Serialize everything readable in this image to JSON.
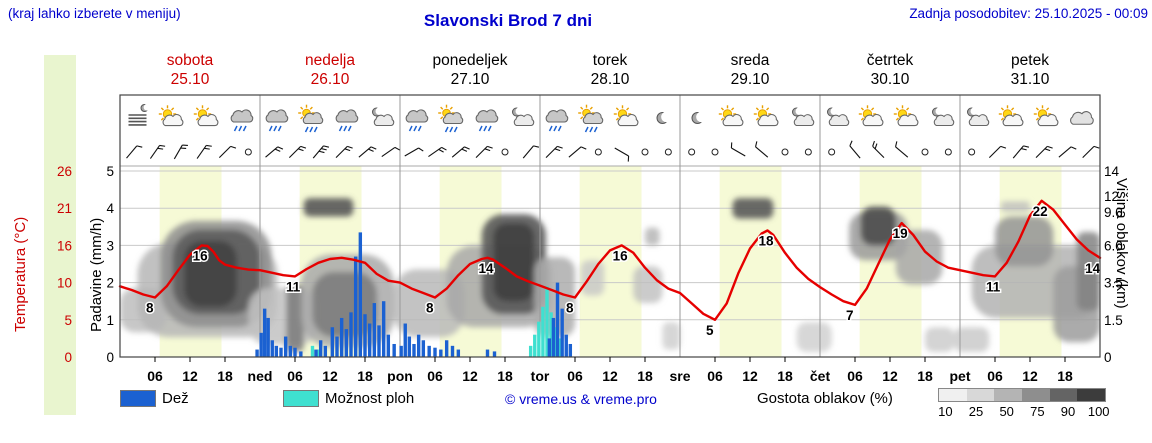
{
  "header": {
    "hint": "(kraj lahko izberete v meniju)",
    "title": "Slavonski Brod 7 dni",
    "updated": "Zadnja posodobitev: 25.10.2025 - 00:09"
  },
  "axes": {
    "temp_label": "Temperatura (°C)",
    "temp_ticks": [
      "26",
      "21",
      "16",
      "10",
      "5",
      "0"
    ],
    "precip_label": "Padavine (mm/h)",
    "precip_ticks": [
      "5",
      "4",
      "3",
      "2",
      "1",
      "0"
    ],
    "cloud_label": "Višina oblakov (km)",
    "cloud_ticks": [
      "14",
      "12",
      "9.0",
      "6.0",
      "3.5",
      "1.5",
      "0"
    ]
  },
  "days": [
    {
      "name": "sobota",
      "date": "25.10",
      "weekend": true
    },
    {
      "name": "nedelja",
      "date": "26.10",
      "weekend": true
    },
    {
      "name": "ponedeljek",
      "date": "27.10",
      "weekend": false
    },
    {
      "name": "torek",
      "date": "28.10",
      "weekend": false
    },
    {
      "name": "sreda",
      "date": "29.10",
      "weekend": false
    },
    {
      "name": "četrtek",
      "date": "30.10",
      "weekend": false
    },
    {
      "name": "petek",
      "date": "31.10",
      "weekend": false
    }
  ],
  "x_axis": {
    "hour_labels": [
      "06",
      "12",
      "18"
    ],
    "day_abbrevs": [
      "ned",
      "pon",
      "tor",
      "sre",
      "čet",
      "pet"
    ]
  },
  "legend": {
    "rain": "Dež",
    "showers": "Možnost ploh",
    "copyright": "© vreme.us & vreme.pro",
    "cloud_density": "Gostota oblakov (%)",
    "cloud_scale": [
      "10",
      "25",
      "50",
      "75",
      "90",
      "100"
    ],
    "cloud_scale_colors": [
      "#f0f0f0",
      "#d8d8d8",
      "#b4b4b4",
      "#8e8e8e",
      "#646464",
      "#3c3c3c"
    ]
  },
  "chart_data": {
    "type": "meteogram",
    "x_hours_range": [
      0,
      168
    ],
    "hours_per_day": 24,
    "daylight_hours": [
      6.8,
      17.4
    ],
    "temp_axis_anchor_values": [
      0,
      5,
      10,
      16,
      21,
      26
    ],
    "temp_tick_values": [
      26,
      21,
      16,
      10,
      5,
      0
    ],
    "precip_axis": [
      0,
      5
    ],
    "precip_tick_values": [
      5,
      4,
      3,
      2,
      1,
      0
    ],
    "cloud_km_anchors": [
      0,
      1.5,
      3.5,
      6,
      9,
      12,
      14
    ],
    "cloud_tick_values": [
      14,
      12,
      9,
      6,
      3.5,
      1.5,
      0
    ],
    "temperature_c": [
      [
        0,
        9.5
      ],
      [
        2,
        9
      ],
      [
        4,
        8.4
      ],
      [
        6,
        8
      ],
      [
        8,
        9.5
      ],
      [
        10,
        12
      ],
      [
        12,
        14.5
      ],
      [
        14,
        16
      ],
      [
        15,
        15.9
      ],
      [
        16,
        15
      ],
      [
        17,
        13.6
      ],
      [
        18,
        12.9
      ],
      [
        20,
        12.4
      ],
      [
        22,
        12.1
      ],
      [
        24,
        12
      ],
      [
        26,
        11.6
      ],
      [
        28,
        11.2
      ],
      [
        30,
        11
      ],
      [
        32,
        12.2
      ],
      [
        34,
        13.2
      ],
      [
        36,
        13.8
      ],
      [
        38,
        14
      ],
      [
        40,
        13.7
      ],
      [
        42,
        13.2
      ],
      [
        44,
        11.4
      ],
      [
        46,
        10.3
      ],
      [
        48,
        10
      ],
      [
        50,
        9.2
      ],
      [
        52,
        8.6
      ],
      [
        54,
        8
      ],
      [
        56,
        9.2
      ],
      [
        58,
        11.2
      ],
      [
        60,
        13
      ],
      [
        62,
        13.8
      ],
      [
        63,
        14
      ],
      [
        64,
        13.7
      ],
      [
        66,
        12.4
      ],
      [
        68,
        11
      ],
      [
        70,
        10.2
      ],
      [
        72,
        9.6
      ],
      [
        74,
        9
      ],
      [
        76,
        8.4
      ],
      [
        78,
        8
      ],
      [
        80,
        10.2
      ],
      [
        82,
        13
      ],
      [
        84,
        15.2
      ],
      [
        86,
        16
      ],
      [
        88,
        14.8
      ],
      [
        90,
        12.4
      ],
      [
        92,
        10.4
      ],
      [
        94,
        9.2
      ],
      [
        96,
        8.6
      ],
      [
        98,
        7.2
      ],
      [
        100,
        5.8
      ],
      [
        102,
        5
      ],
      [
        104,
        7.2
      ],
      [
        106,
        11.5
      ],
      [
        108,
        15.5
      ],
      [
        110,
        17.6
      ],
      [
        111,
        18
      ],
      [
        112,
        17.4
      ],
      [
        114,
        14.8
      ],
      [
        116,
        12.4
      ],
      [
        118,
        10.6
      ],
      [
        120,
        9.4
      ],
      [
        122,
        8.4
      ],
      [
        124,
        7.5
      ],
      [
        126,
        7
      ],
      [
        128,
        9.2
      ],
      [
        130,
        13
      ],
      [
        132,
        16.8
      ],
      [
        134,
        19
      ],
      [
        136,
        17.4
      ],
      [
        138,
        15
      ],
      [
        140,
        13.4
      ],
      [
        142,
        12.4
      ],
      [
        144,
        12
      ],
      [
        146,
        11.6
      ],
      [
        148,
        11.2
      ],
      [
        150,
        11
      ],
      [
        152,
        13.2
      ],
      [
        154,
        16.5
      ],
      [
        156,
        20
      ],
      [
        158,
        22
      ],
      [
        160,
        20.8
      ],
      [
        162,
        18.8
      ],
      [
        164,
        16.8
      ],
      [
        166,
        15.2
      ],
      [
        168,
        14
      ]
    ],
    "temp_point_labels": [
      {
        "h": 6,
        "v": 8
      },
      {
        "h": 14,
        "v": 16
      },
      {
        "h": 30,
        "v": 11
      },
      {
        "h": 54,
        "v": 8
      },
      {
        "h": 63,
        "v": 14
      },
      {
        "h": 78,
        "v": 8
      },
      {
        "h": 86,
        "v": 16
      },
      {
        "h": 102,
        "v": 5
      },
      {
        "h": 111,
        "v": 18
      },
      {
        "h": 126,
        "v": 7
      },
      {
        "h": 134,
        "v": 19
      },
      {
        "h": 150,
        "v": 11
      },
      {
        "h": 158,
        "v": 22
      },
      {
        "h": 167,
        "v": 14
      }
    ],
    "rain_mm_h": [
      [
        23.5,
        0.2
      ],
      [
        24.2,
        0.65
      ],
      [
        24.8,
        1.3
      ],
      [
        25.4,
        1.05
      ],
      [
        26.1,
        0.45
      ],
      [
        26.8,
        0.3
      ],
      [
        27.6,
        0.25
      ],
      [
        28.4,
        0.55
      ],
      [
        29.2,
        0.3
      ],
      [
        30,
        0.25
      ],
      [
        31,
        0.15
      ],
      [
        33.6,
        0.2
      ],
      [
        34.4,
        0.45
      ],
      [
        35.2,
        0.3
      ],
      [
        36.4,
        0.8
      ],
      [
        37.2,
        0.55
      ],
      [
        38,
        1.05
      ],
      [
        38.8,
        0.75
      ],
      [
        39.6,
        1.2
      ],
      [
        40.4,
        2.7
      ],
      [
        41.2,
        3.35
      ],
      [
        42,
        1.15
      ],
      [
        42.8,
        0.9
      ],
      [
        43.6,
        1.45
      ],
      [
        44.4,
        0.85
      ],
      [
        45.2,
        1.5
      ],
      [
        46,
        0.6
      ],
      [
        47,
        0.35
      ],
      [
        48.2,
        0.3
      ],
      [
        48.9,
        0.9
      ],
      [
        49.6,
        0.55
      ],
      [
        50.4,
        0.35
      ],
      [
        51.2,
        0.6
      ],
      [
        52,
        0.45
      ],
      [
        53,
        0.3
      ],
      [
        54,
        0.25
      ],
      [
        55,
        0.2
      ],
      [
        56,
        0.45
      ],
      [
        57,
        0.3
      ],
      [
        58,
        0.2
      ],
      [
        63,
        0.2
      ],
      [
        64.2,
        0.15
      ],
      [
        73.6,
        0.5
      ],
      [
        74.3,
        1.05
      ],
      [
        75,
        2
      ],
      [
        75.8,
        1.3
      ],
      [
        76.5,
        0.6
      ],
      [
        77.2,
        0.35
      ]
    ],
    "showers_mm_h": [
      [
        33,
        0.3
      ],
      [
        34,
        0.2
      ],
      [
        70.4,
        0.3
      ],
      [
        71.1,
        0.6
      ],
      [
        71.8,
        0.95
      ],
      [
        72.5,
        1.35
      ],
      [
        73.2,
        1.9
      ],
      [
        73.9,
        1.2
      ],
      [
        74.6,
        0.8
      ],
      [
        75.3,
        0.5
      ]
    ],
    "clouds": [
      [
        0,
        8,
        1,
        3.2,
        "#bdbdbd",
        0.85
      ],
      [
        3,
        27,
        0.8,
        6.2,
        "#b6b6b6",
        0.85
      ],
      [
        7,
        26,
        1.2,
        8.2,
        "#8d8d8d",
        0.85
      ],
      [
        9,
        24,
        1.8,
        7.4,
        "#5d5d5d",
        0.9
      ],
      [
        11,
        20,
        2.2,
        6.4,
        "#424242",
        0.9
      ],
      [
        22,
        34,
        0.5,
        3.2,
        "#c2c2c2",
        0.85
      ],
      [
        28.5,
        31.5,
        0.2,
        3.4,
        "#7a7a7a",
        0.85
      ],
      [
        31.5,
        40,
        8.6,
        11.6,
        "#585858",
        0.9
      ],
      [
        31,
        47,
        0.4,
        5.4,
        "#a9a9a9",
        0.85
      ],
      [
        33,
        44,
        0.8,
        4.2,
        "#7b7b7b",
        0.85
      ],
      [
        47,
        59,
        0.8,
        4.4,
        "#b8b8b8",
        0.85
      ],
      [
        56,
        74,
        1.2,
        6,
        "#a8a8a8",
        0.85
      ],
      [
        62,
        73,
        1.8,
        8.8,
        "#595959",
        0.9
      ],
      [
        64,
        71,
        2.5,
        8,
        "#3f3f3f",
        0.9
      ],
      [
        71,
        78,
        0.8,
        5.2,
        "#adadad",
        0.85
      ],
      [
        79,
        83,
        2.8,
        5,
        "#c5c5c5",
        0.8
      ],
      [
        88,
        93,
        2.4,
        4.6,
        "#bebebe",
        0.8
      ],
      [
        90,
        92.5,
        6,
        7.6,
        "#b1b1b1",
        0.8
      ],
      [
        93,
        96,
        0.3,
        1.4,
        "#cccccc",
        0.8
      ],
      [
        105,
        112,
        8.4,
        11.6,
        "#5a5a5a",
        0.9
      ],
      [
        116,
        122,
        0.2,
        1.4,
        "#cdcdcd",
        0.8
      ],
      [
        125,
        135,
        5,
        9,
        "#9a9a9a",
        0.85
      ],
      [
        127,
        133,
        6,
        10,
        "#4e4e4e",
        0.9
      ],
      [
        133,
        141,
        3.4,
        7.4,
        "#a7a7a7",
        0.85
      ],
      [
        138,
        143,
        0.2,
        1.2,
        "#c9c9c9",
        0.8
      ],
      [
        143,
        149,
        0.2,
        1.2,
        "#c7c7c7",
        0.8
      ],
      [
        146,
        168,
        1.6,
        6,
        "#b3b3b3",
        0.85
      ],
      [
        150,
        160,
        4.6,
        8.6,
        "#949494",
        0.85
      ],
      [
        151,
        156,
        9,
        11,
        "#bababa",
        0.75
      ],
      [
        160,
        168,
        0.6,
        4.6,
        "#9c9c9c",
        0.85
      ],
      [
        164,
        168,
        2,
        7.2,
        "#838383",
        0.85
      ]
    ],
    "weather_icons": [
      "fog",
      "sun-cloud",
      "sun-cloud",
      "rain",
      "rain",
      "sun-rain",
      "rain",
      "moon-cloud",
      "rain",
      "sun-rain",
      "rain",
      "moon-cloud",
      "rain",
      "sun-rain",
      "sun-cloud",
      "moon",
      "moon",
      "sun-cloud",
      "sun-cloud",
      "moon-cloud",
      "moon-cloud",
      "sun-cloud",
      "sun-cloud",
      "moon-cloud",
      "moon-cloud",
      "sun-cloud",
      "sun-cloud",
      "cloud"
    ],
    "wind_symbols": [
      [
        40,
        1
      ],
      [
        35,
        2
      ],
      [
        30,
        2
      ],
      [
        35,
        2
      ],
      [
        45,
        1
      ],
      0,
      [
        50,
        2
      ],
      [
        45,
        2
      ],
      [
        40,
        3
      ],
      [
        45,
        2
      ],
      [
        50,
        2
      ],
      [
        55,
        1
      ],
      [
        60,
        1
      ],
      [
        55,
        2
      ],
      [
        50,
        2
      ],
      [
        45,
        2
      ],
      0,
      [
        40,
        1
      ],
      [
        45,
        2
      ],
      [
        50,
        1
      ],
      0,
      [
        120,
        1
      ],
      0,
      0,
      0,
      0,
      [
        300,
        1
      ],
      [
        310,
        1
      ],
      0,
      0,
      0,
      [
        320,
        1
      ],
      [
        315,
        2
      ],
      [
        310,
        1
      ],
      0,
      0,
      0,
      [
        45,
        1
      ],
      [
        40,
        2
      ],
      [
        45,
        2
      ],
      [
        50,
        1
      ],
      [
        45,
        1
      ]
    ],
    "colors": {
      "rain": "#1b61d1",
      "showers": "#3fe0d0",
      "temperature": "#e60000",
      "day_band": "#f6fad6",
      "grid": "#c9c9c9",
      "frame": "#444444",
      "separator": "#999999"
    }
  }
}
